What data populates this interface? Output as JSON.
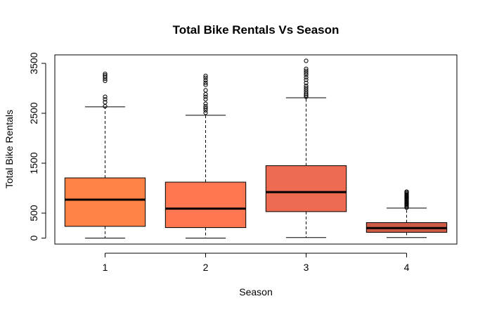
{
  "chart_data": {
    "type": "boxplot",
    "title": "Total Bike Rentals Vs Season",
    "xlabel": "Season",
    "ylabel": "Total Bike Rentals",
    "categories": [
      "1",
      "2",
      "3",
      "4"
    ],
    "ylim": [
      -120,
      3670
    ],
    "yticks": [
      0,
      500,
      1500,
      2500,
      3500
    ],
    "grid": false,
    "legend": "none",
    "boxes": [
      {
        "category": "1",
        "min": 0,
        "q1": 235,
        "median": 770,
        "q3": 1205,
        "whisker_high": 2630,
        "color": "#FF8247",
        "outliers": [
          2640,
          2720,
          2780,
          2830,
          3150,
          3190,
          3230,
          3260,
          3290
        ]
      },
      {
        "category": "2",
        "min": 0,
        "q1": 210,
        "median": 590,
        "q3": 1120,
        "whisker_high": 2460,
        "color": "#FF7751",
        "outliers": [
          2510,
          2560,
          2600,
          2640,
          2690,
          2780,
          2830,
          2880,
          2960,
          3070,
          3110,
          3160,
          3210,
          3250
        ]
      },
      {
        "category": "3",
        "min": 10,
        "q1": 530,
        "median": 920,
        "q3": 1450,
        "whisker_high": 2810,
        "color": "#EE6A50",
        "outliers": [
          2830,
          2860,
          2890,
          2930,
          2970,
          3010,
          3050,
          3110,
          3170,
          3220,
          3270,
          3310,
          3350,
          3390,
          3550
        ]
      },
      {
        "category": "4",
        "min": 10,
        "q1": 115,
        "median": 200,
        "q3": 310,
        "whisker_high": 600,
        "color": "#CD5B45",
        "outliers": [
          610,
          630,
          650,
          670,
          690,
          710,
          730,
          750,
          770,
          790,
          810,
          830,
          850,
          870,
          890,
          910,
          930
        ]
      }
    ]
  }
}
